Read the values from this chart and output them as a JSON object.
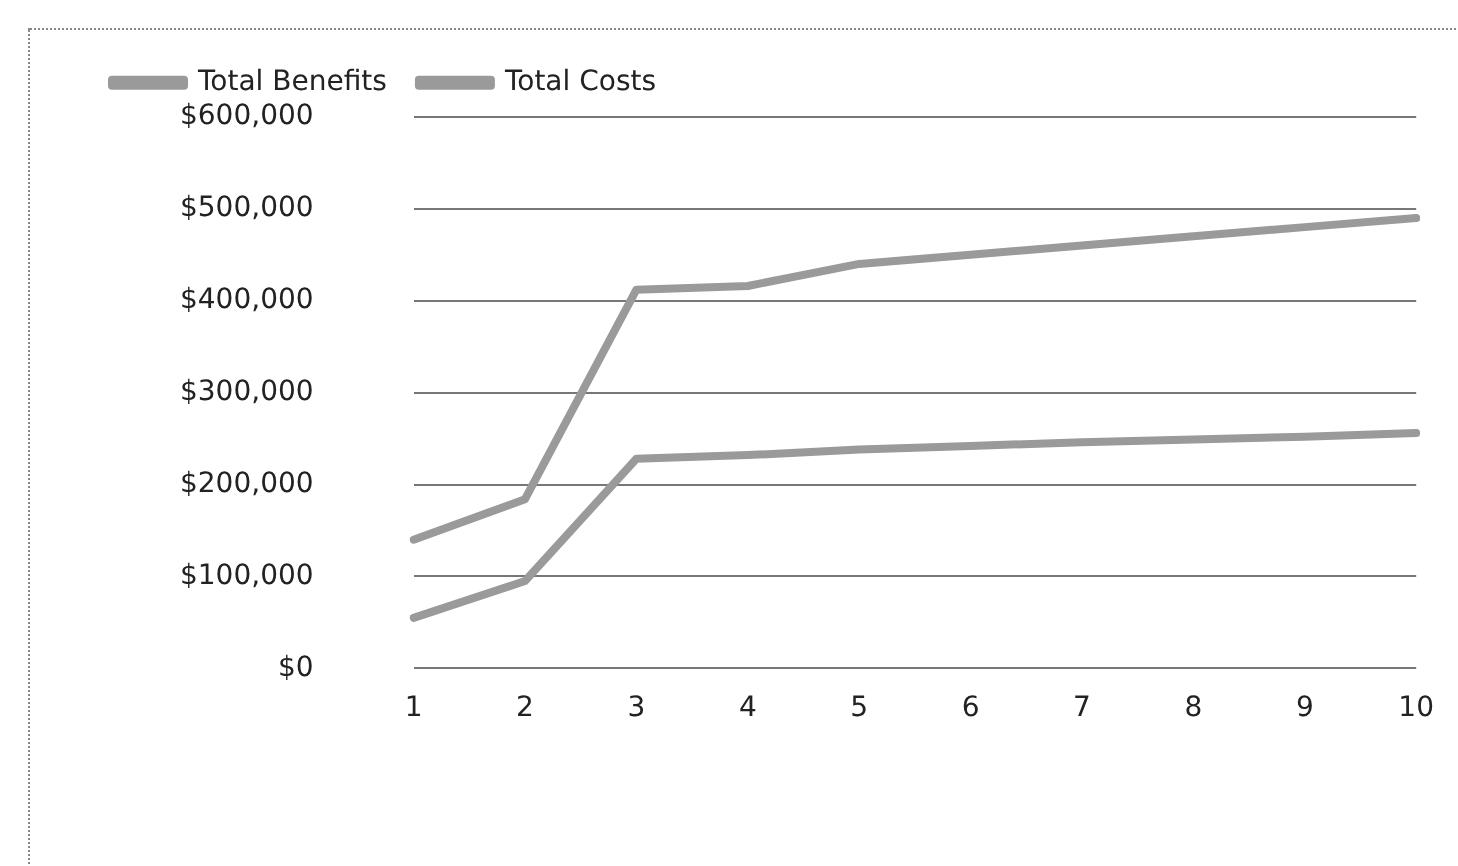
{
  "chart_data": {
    "type": "line",
    "categories": [
      "1",
      "2",
      "3",
      "4",
      "5",
      "6",
      "7",
      "8",
      "9",
      "10"
    ],
    "series": [
      {
        "name": "Total Benefits",
        "color": "#9a9a9a",
        "values": [
          140000,
          184000,
          412000,
          416000,
          440000,
          450000,
          460000,
          470000,
          480000,
          490000
        ]
      },
      {
        "name": "Total Costs",
        "color": "#9a9a9a",
        "values": [
          55000,
          95000,
          228000,
          232000,
          238000,
          242000,
          246000,
          249000,
          252000,
          256000
        ]
      }
    ],
    "ylim": [
      0,
      600000
    ],
    "yticks": [
      {
        "value": 0,
        "label": "$0"
      },
      {
        "value": 100000,
        "label": "$100,000"
      },
      {
        "value": 200000,
        "label": "$200,000"
      },
      {
        "value": 300000,
        "label": "$300,000"
      },
      {
        "value": 400000,
        "label": "$400,000"
      },
      {
        "value": 500000,
        "label": "$500,000"
      },
      {
        "value": 600000,
        "label": "$600,000"
      }
    ],
    "grid": "y",
    "legend": "top",
    "marker": "none",
    "line_style": "solid"
  }
}
